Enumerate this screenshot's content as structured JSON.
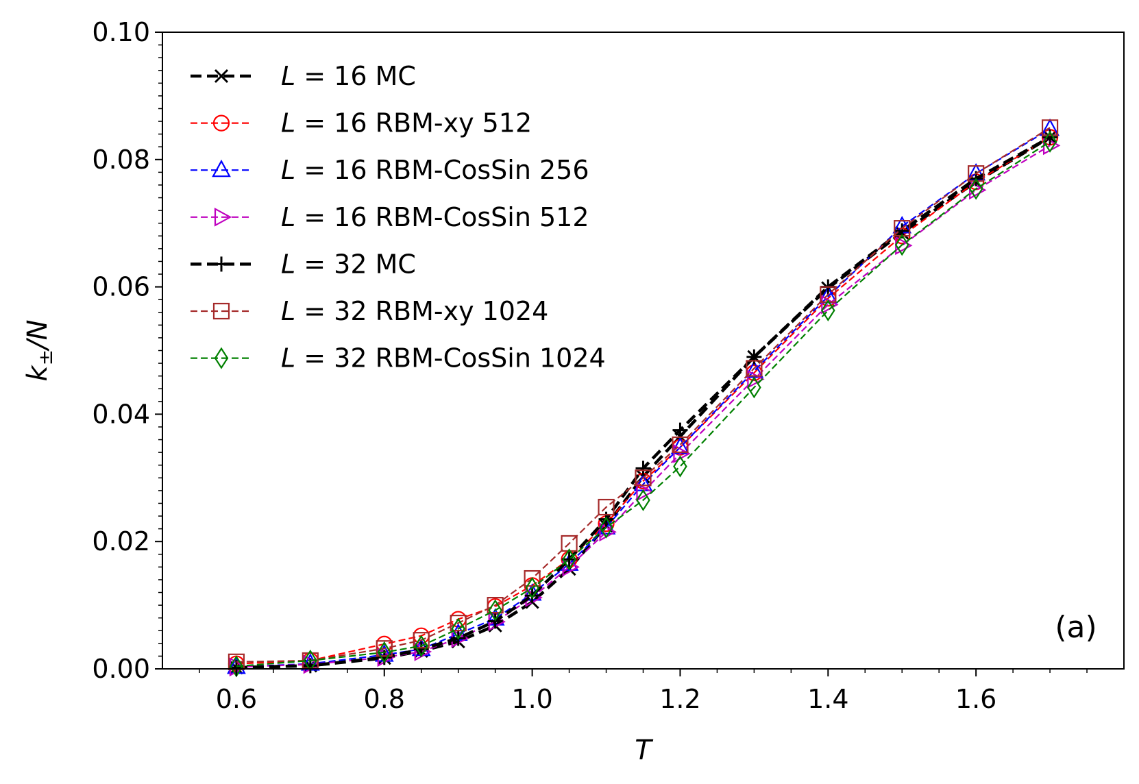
{
  "chart_data": {
    "type": "line",
    "title": "",
    "xlabel": "T",
    "ylabel_main": "k",
    "ylabel_sub": "±",
    "ylabel_tail": "/N",
    "xlim": [
      0.5,
      1.8
    ],
    "ylim": [
      0.0,
      0.1
    ],
    "xticks": [
      0.6,
      0.8,
      1.0,
      1.2,
      1.4,
      1.6
    ],
    "xtick_labels": [
      "0.6",
      "0.8",
      "1.0",
      "1.2",
      "1.4",
      "1.6"
    ],
    "yticks": [
      0.0,
      0.02,
      0.04,
      0.06,
      0.08,
      0.1
    ],
    "ytick_labels": [
      "0.00",
      "0.02",
      "0.04",
      "0.06",
      "0.08",
      "0.10"
    ],
    "panel_label": "(a)",
    "legend_position": "top-left",
    "grid": false,
    "x": [
      0.6,
      0.7,
      0.8,
      0.85,
      0.9,
      0.95,
      1.0,
      1.05,
      1.1,
      1.15,
      1.2,
      1.3,
      1.4,
      1.5,
      1.6,
      1.7
    ],
    "series": [
      {
        "name": "L = 16 MC",
        "L": "L",
        "eq": " = ",
        "rest": "16 MC",
        "color": "#000000",
        "marker": "x",
        "thick": true,
        "values": [
          0.0002,
          0.0005,
          0.0017,
          0.0028,
          0.0043,
          0.0068,
          0.0105,
          0.0157,
          0.0225,
          0.0302,
          0.0365,
          0.049,
          0.0598,
          0.0685,
          0.0765,
          0.0835
        ]
      },
      {
        "name": "L = 16 RBM-xy 512",
        "L": "L",
        "eq": " = ",
        "rest": "16 RBM-xy 512",
        "color": "#ff0000",
        "marker": "circle",
        "thick": false,
        "values": [
          0.0008,
          0.0013,
          0.0039,
          0.0052,
          0.0078,
          0.0098,
          0.0131,
          0.0172,
          0.0228,
          0.0295,
          0.0348,
          0.0465,
          0.0582,
          0.068,
          0.0765,
          0.0835
        ]
      },
      {
        "name": "L = 16 RBM-CosSin 256",
        "L": "L",
        "eq": " = ",
        "rest": "16 RBM-CosSin 256",
        "color": "#0000ff",
        "marker": "triangle-up",
        "thick": false,
        "values": [
          0.0003,
          0.0008,
          0.0022,
          0.0031,
          0.0055,
          0.0079,
          0.0118,
          0.0165,
          0.0222,
          0.029,
          0.0348,
          0.0468,
          0.0585,
          0.0695,
          0.0778,
          0.0848
        ]
      },
      {
        "name": "L = 16 RBM-CosSin 512",
        "L": "L",
        "eq": " = ",
        "rest": "16 RBM-CosSin 512",
        "color": "#bf00bf",
        "marker": "triangle-right",
        "thick": false,
        "values": [
          0.0003,
          0.0007,
          0.0018,
          0.0027,
          0.0048,
          0.0074,
          0.0112,
          0.016,
          0.0215,
          0.0278,
          0.0338,
          0.0455,
          0.0572,
          0.0665,
          0.0752,
          0.0822
        ]
      },
      {
        "name": "L = 32 MC",
        "L": "L",
        "eq": " = ",
        "rest": "32 MC",
        "color": "#000000",
        "marker": "plus",
        "thick": true,
        "values": [
          0.0002,
          0.0005,
          0.0018,
          0.0031,
          0.0048,
          0.0075,
          0.0115,
          0.0172,
          0.0235,
          0.0315,
          0.0375,
          0.049,
          0.06,
          0.0688,
          0.077,
          0.0835
        ]
      },
      {
        "name": "L = 32 RBM-xy 1024",
        "L": "L",
        "eq": " = ",
        "rest": "32 RBM-xy 1024",
        "color": "#a52a2a",
        "marker": "square",
        "thick": false,
        "values": [
          0.0011,
          0.0013,
          0.0032,
          0.0045,
          0.0072,
          0.01,
          0.0142,
          0.0197,
          0.0254,
          0.03,
          0.0352,
          0.0472,
          0.0588,
          0.0692,
          0.0778,
          0.085
        ]
      },
      {
        "name": "L = 32 RBM-CosSin 1024",
        "L": "L",
        "eq": " = ",
        "rest": "32 RBM-CosSin 1024",
        "color": "#008000",
        "marker": "diamond",
        "thick": false,
        "values": [
          0.0004,
          0.0013,
          0.0026,
          0.0036,
          0.0063,
          0.0092,
          0.0127,
          0.0172,
          0.0222,
          0.0265,
          0.0318,
          0.0442,
          0.0563,
          0.0666,
          0.0754,
          0.0828
        ]
      }
    ]
  }
}
